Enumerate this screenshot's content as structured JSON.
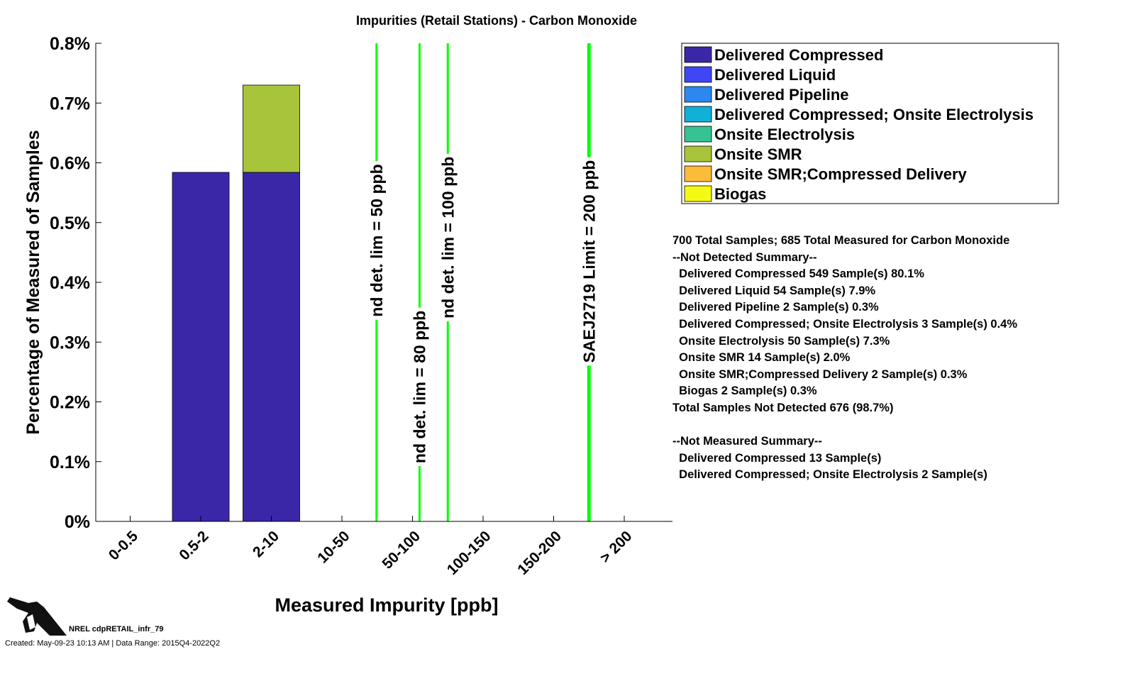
{
  "chart_data": {
    "type": "bar",
    "stacked": true,
    "title": "Impurities (Retail Stations) - Carbon Monoxide",
    "xlabel": "Measured Impurity [ppb]",
    "ylabel": "Percentage of Measured of Samples",
    "categories": [
      "0-0.5",
      "0.5-2",
      "2-10",
      "10-50",
      "50-100",
      "100-150",
      "150-200",
      "> 200"
    ],
    "ylim": [
      0,
      0.8
    ],
    "yticks": [
      "0%",
      "0.1%",
      "0.2%",
      "0.3%",
      "0.4%",
      "0.5%",
      "0.6%",
      "0.7%",
      "0.8%"
    ],
    "series": [
      {
        "name": "Delivered Compressed",
        "color": "#3a27a8",
        "values": [
          0,
          0.584,
          0.584,
          0,
          0,
          0,
          0,
          0
        ]
      },
      {
        "name": "Delivered Liquid",
        "color": "#4046f5",
        "values": [
          0,
          0,
          0,
          0,
          0,
          0,
          0,
          0
        ]
      },
      {
        "name": "Delivered Pipeline",
        "color": "#2c87f1",
        "values": [
          0,
          0,
          0,
          0,
          0,
          0,
          0,
          0
        ]
      },
      {
        "name": "Delivered Compressed; Onsite Electrolysis",
        "color": "#10b1d9",
        "values": [
          0,
          0,
          0,
          0,
          0,
          0,
          0,
          0
        ]
      },
      {
        "name": "Onsite Electrolysis",
        "color": "#35c393",
        "values": [
          0,
          0,
          0,
          0,
          0,
          0,
          0,
          0
        ]
      },
      {
        "name": "Onsite SMR",
        "color": "#a8c43a",
        "values": [
          0,
          0,
          0.146,
          0,
          0,
          0,
          0,
          0
        ]
      },
      {
        "name": "Onsite SMR;Compressed Delivery",
        "color": "#fdbb3a",
        "values": [
          0,
          0,
          0,
          0,
          0,
          0,
          0,
          0
        ]
      },
      {
        "name": "Biogas",
        "color": "#f6f914",
        "values": [
          0,
          0,
          0,
          0,
          0,
          0,
          0,
          0
        ]
      }
    ],
    "reference_lines": [
      {
        "label": "nd det. lim = 50 ppb",
        "x_category_pos": 4.49,
        "label_y": 0.47
      },
      {
        "label": "nd det. lim = 80 ppb",
        "x_category_pos": 5.1,
        "label_y": 0.225
      },
      {
        "label": "nd det. lim = 100 ppb",
        "x_category_pos": 5.5,
        "label_y": 0.475
      },
      {
        "label": "SAEJ2719 Limit = 200 ppb",
        "x_category_pos": 7.5,
        "label_y": 0.435
      }
    ],
    "reference_color": "#00ff00",
    "legend_placement": "right"
  },
  "summary_lines": [
    "700 Total Samples; 685 Total Measured for Carbon Monoxide",
    "--Not Detected Summary--",
    "  Delivered Compressed 549 Sample(s) 80.1%",
    "  Delivered Liquid 54 Sample(s) 7.9%",
    "  Delivered Pipeline 2 Sample(s) 0.3%",
    "  Delivered Compressed; Onsite Electrolysis 3 Sample(s) 0.4%",
    "  Onsite Electrolysis 50 Sample(s) 7.3%",
    "  Onsite SMR 14 Sample(s) 2.0%",
    "  Onsite SMR;Compressed Delivery 2 Sample(s) 0.3%",
    "  Biogas 2 Sample(s) 0.3%",
    "Total Samples Not Detected 676 (98.7%)",
    "",
    "--Not Measured Summary--",
    "  Delivered Compressed 13 Sample(s)",
    "  Delivered Compressed; Onsite Electrolysis 2 Sample(s)"
  ],
  "footer": {
    "id": "NREL cdpRETAIL_infr_79",
    "created": "Created: May-09-23 10:13 AM | Data Range: 2015Q4-2022Q2"
  }
}
